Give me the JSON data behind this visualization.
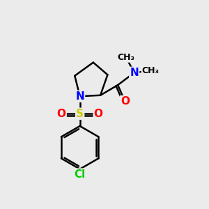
{
  "bg_color": "#ebebeb",
  "atom_colors": {
    "C": "#000000",
    "N": "#0000ff",
    "O": "#ff0000",
    "S": "#cccc00",
    "Cl": "#00cc00"
  },
  "bond_color": "#000000",
  "bond_width": 1.8,
  "font_size_atom": 11,
  "font_size_small": 9,
  "figsize": [
    3.0,
    3.0
  ],
  "dpi": 100
}
